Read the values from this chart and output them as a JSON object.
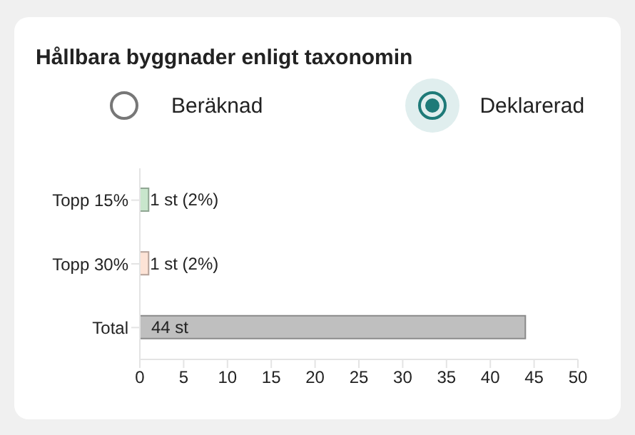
{
  "chart_data": {
    "type": "bar",
    "orientation": "horizontal",
    "title": "Hållbara byggnader enligt taxonomin",
    "annotations": [
      "Beräknad",
      "Deklarerad"
    ],
    "categories": [
      "Topp 15%",
      "Topp 30%",
      "Total"
    ],
    "values": [
      1,
      1,
      44
    ],
    "colors": [
      "#c8e6cc",
      "#fde3d6",
      "#bfbfbf"
    ],
    "value_labels": [
      "1 st (2%)",
      "1 st (2%)",
      "44 st"
    ],
    "xlim": [
      0,
      50
    ],
    "xticks": [
      0,
      5,
      10,
      15,
      20,
      25,
      30,
      35,
      40,
      45,
      50
    ],
    "grid": false,
    "legend": false
  }
}
